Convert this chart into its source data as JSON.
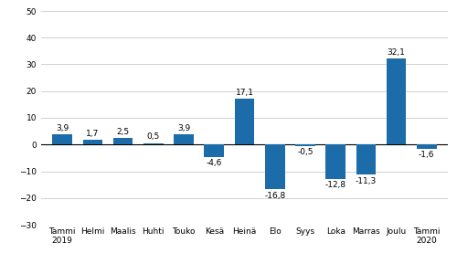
{
  "categories": [
    "Tammi\n2019",
    "Helmi",
    "Maalis",
    "Huhti",
    "Touko",
    "Kesä",
    "Heinä",
    "Elo",
    "Syys",
    "Loka",
    "Marras",
    "Joulu",
    "Tammi\n2020"
  ],
  "values": [
    3.9,
    1.7,
    2.5,
    0.5,
    3.9,
    -4.6,
    17.1,
    -16.8,
    -0.5,
    -12.8,
    -11.3,
    32.1,
    -1.6
  ],
  "value_labels": [
    "3,9",
    "1,7",
    "2,5",
    "0,5",
    "3,9",
    "-4,6",
    "17,1",
    "-16,8",
    "-0,5",
    "-12,8",
    "-11,3",
    "32,1",
    "-1,6"
  ],
  "bar_color": "#1B6CA8",
  "ylim": [
    -30,
    50
  ],
  "yticks": [
    -30,
    -20,
    -10,
    0,
    10,
    20,
    30,
    40,
    50
  ],
  "background_color": "#ffffff",
  "grid_color": "#d0d0d0",
  "value_fontsize": 6.5,
  "tick_fontsize": 6.5,
  "bar_width": 0.65
}
